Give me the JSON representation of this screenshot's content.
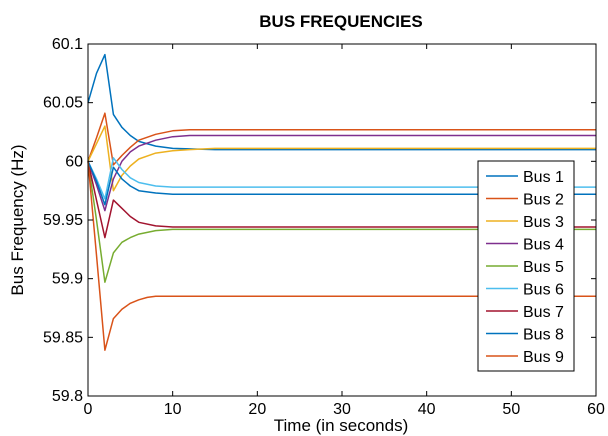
{
  "chart_data": {
    "type": "line",
    "title": "BUS FREQUENCIES",
    "xlabel": "Time (in seconds)",
    "ylabel": "Bus Frequency (Hz)",
    "xlim": [
      0,
      60
    ],
    "ylim": [
      59.8,
      60.1
    ],
    "xticks": [
      "0",
      "10",
      "20",
      "30",
      "40",
      "50",
      "60"
    ],
    "yticks": [
      "59.8",
      "59.85",
      "59.9",
      "59.95",
      "60",
      "60.05",
      "60.1"
    ],
    "grid": false,
    "legend_position": "right",
    "series": [
      {
        "name": "Bus 1",
        "color": "#0072BD",
        "x": [
          0,
          1,
          2,
          3,
          4,
          5,
          6,
          8,
          10,
          15,
          60
        ],
        "y": [
          60.05,
          60.075,
          60.091,
          60.04,
          60.029,
          60.022,
          60.017,
          60.013,
          60.011,
          60.01,
          60.01
        ]
      },
      {
        "name": "Bus 2",
        "color": "#D95319",
        "x": [
          0,
          1,
          2,
          3,
          4,
          5,
          6,
          8,
          10,
          12,
          15,
          60
        ],
        "y": [
          60.0,
          60.02,
          60.041,
          59.997,
          60.005,
          60.012,
          60.018,
          60.023,
          60.026,
          60.027,
          60.027,
          60.027
        ]
      },
      {
        "name": "Bus 3",
        "color": "#EDB120",
        "x": [
          0,
          1,
          2,
          3,
          4,
          5,
          6,
          8,
          10,
          12,
          15,
          60
        ],
        "y": [
          60.0,
          60.015,
          60.03,
          59.975,
          59.988,
          59.996,
          60.002,
          60.007,
          60.009,
          60.01,
          60.011,
          60.011
        ]
      },
      {
        "name": "Bus 4",
        "color": "#7E2F8E",
        "x": [
          0,
          1,
          2,
          3,
          4,
          5,
          6,
          8,
          10,
          12,
          15,
          60
        ],
        "y": [
          60.0,
          59.98,
          59.958,
          59.985,
          60.0,
          60.008,
          60.013,
          60.018,
          60.021,
          60.022,
          60.022,
          60.022
        ]
      },
      {
        "name": "Bus 5",
        "color": "#77AC30",
        "x": [
          0,
          1,
          2,
          3,
          4,
          5,
          6,
          8,
          10,
          12,
          15,
          60
        ],
        "y": [
          60.0,
          59.95,
          59.897,
          59.922,
          59.931,
          59.935,
          59.938,
          59.941,
          59.942,
          59.942,
          59.942,
          59.942
        ]
      },
      {
        "name": "Bus 6",
        "color": "#4DBEEE",
        "x": [
          0,
          1,
          2,
          3,
          4,
          5,
          6,
          8,
          10,
          15,
          60
        ],
        "y": [
          60.0,
          59.985,
          59.968,
          60.003,
          59.993,
          59.986,
          59.982,
          59.979,
          59.978,
          59.978,
          59.978
        ]
      },
      {
        "name": "Bus 7",
        "color": "#A2142F",
        "x": [
          0,
          1,
          2,
          3,
          4,
          5,
          6,
          8,
          10,
          15,
          60
        ],
        "y": [
          60.0,
          59.967,
          59.935,
          59.967,
          59.96,
          59.953,
          59.948,
          59.945,
          59.944,
          59.944,
          59.944
        ]
      },
      {
        "name": "Bus 8",
        "color": "#0072BD",
        "x": [
          0,
          1,
          2,
          3,
          4,
          5,
          6,
          8,
          10,
          15,
          60
        ],
        "y": [
          60.0,
          59.983,
          59.963,
          59.995,
          59.985,
          59.979,
          59.975,
          59.973,
          59.972,
          59.972,
          59.972
        ]
      },
      {
        "name": "Bus 9",
        "color": "#D95319",
        "x": [
          0,
          1,
          2,
          3,
          4,
          5,
          6,
          7,
          8,
          10,
          12,
          15,
          60
        ],
        "y": [
          60.0,
          59.92,
          59.839,
          59.866,
          59.874,
          59.879,
          59.882,
          59.884,
          59.885,
          59.885,
          59.885,
          59.885,
          59.885
        ]
      }
    ]
  }
}
